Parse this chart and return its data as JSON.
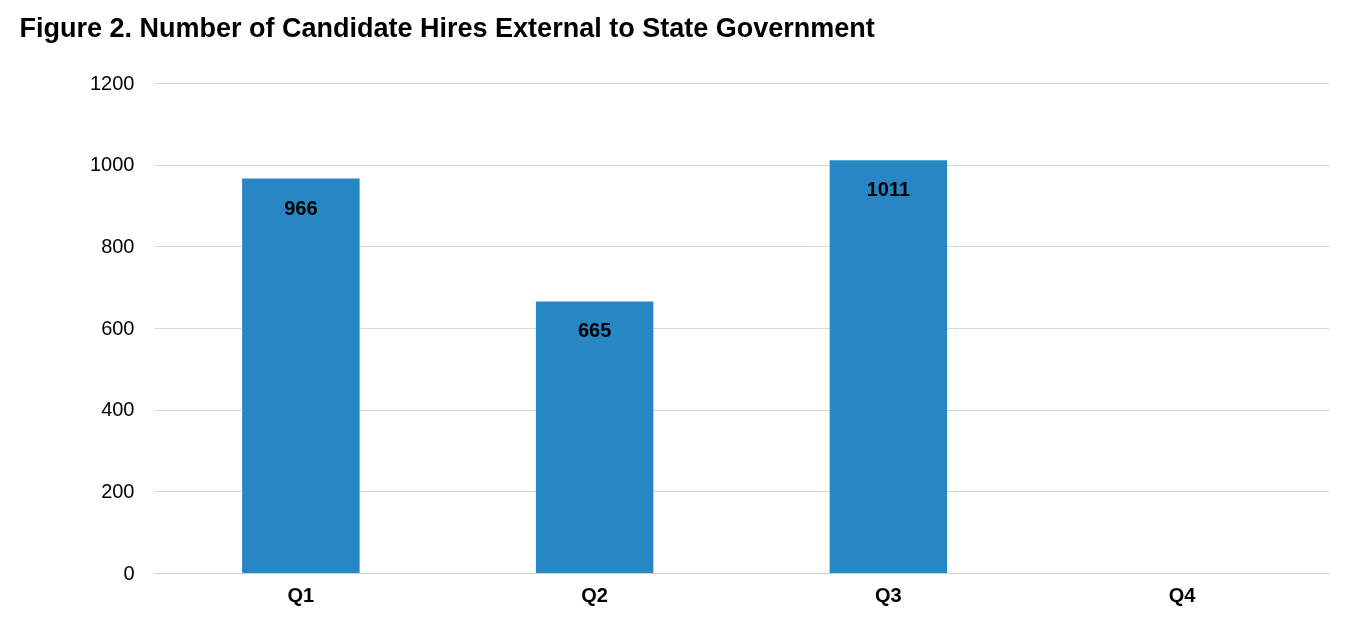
{
  "chart_data": {
    "type": "bar",
    "title": "Figure 2. Number of Candidate Hires External to State Government",
    "categories": [
      "Q1",
      "Q2",
      "Q3",
      "Q4"
    ],
    "values": [
      966,
      665,
      1011,
      null
    ],
    "color": "#2787c5",
    "ylim": [
      0,
      1200
    ],
    "yticks": [
      0,
      200,
      400,
      600,
      800,
      1000,
      1200
    ],
    "grid": "y",
    "data_labels": true
  }
}
